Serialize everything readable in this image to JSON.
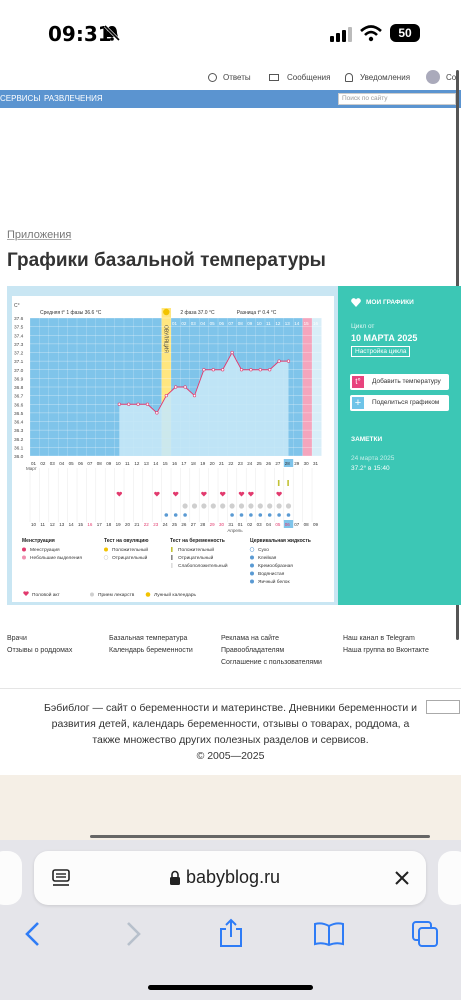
{
  "status": {
    "time": "09:31",
    "battery": "50"
  },
  "topbar": {
    "answers": "Ответы",
    "messages": "Сообщения",
    "notifications": "Уведомления",
    "profile_cut": "Со"
  },
  "nav": {
    "services": "СЕРВИСЫ",
    "entertainment": "РАЗВЛЕЧЕНИЯ",
    "search_placeholder": "Поиск по сайту"
  },
  "breadcrumb": "Приложения",
  "page_title": "Графики базальной температуры",
  "chart_data": {
    "type": "line",
    "title": "",
    "ylabel": "C°",
    "y_ticks": [
      "37.6",
      "37.5",
      "37.4",
      "37.3",
      "37.2",
      "37.1",
      "37.0",
      "36.9",
      "36.8",
      "36.7",
      "36.6",
      "36.5",
      "36.4",
      "36.3",
      "36.2",
      "36.1",
      "36.0"
    ],
    "ylim": [
      36.0,
      37.6
    ],
    "phase1_label": "Средняя t° 1 фазы 36.6 °C",
    "phase2_label": "2 фаза 37.0 °C",
    "diff_label": "Разница t° 0.4 °C",
    "ovulation_label": "ОВУЛЯЦИЯ",
    "top_days": [
      "01",
      "02",
      "03",
      "04",
      "05",
      "06",
      "07",
      "08",
      "09",
      "10",
      "11",
      "12",
      "13",
      "14",
      "15",
      "16"
    ],
    "x_cycle_days": [
      "01",
      "02",
      "03",
      "04",
      "05",
      "06",
      "07",
      "08",
      "09",
      "10",
      "11",
      "12",
      "13",
      "14",
      "15",
      "16",
      "17",
      "18",
      "19",
      "20",
      "21",
      "22",
      "23",
      "24",
      "25",
      "26",
      "27",
      "28",
      "29",
      "30",
      "31"
    ],
    "x_dates": [
      "10",
      "11",
      "12",
      "13",
      "14",
      "15",
      "16",
      "17",
      "18",
      "19",
      "20",
      "21",
      "22",
      "23",
      "24",
      "25",
      "26",
      "27",
      "28",
      "29",
      "30",
      "31",
      "01",
      "02",
      "03",
      "04",
      "05",
      "06",
      "07",
      "08",
      "09"
    ],
    "month_march": "Март",
    "month_april": "Апрель",
    "series": [
      {
        "x": [
          10,
          11,
          12,
          13,
          14,
          15,
          16,
          17,
          18,
          19,
          20,
          21,
          22,
          23,
          24,
          25,
          26,
          27,
          28
        ],
        "values": [
          36.6,
          36.6,
          36.6,
          36.6,
          36.5,
          36.7,
          36.8,
          36.8,
          36.7,
          37.0,
          37.0,
          37.0,
          37.2,
          37.0,
          37.0,
          37.0,
          37.0,
          37.1,
          37.1
        ]
      }
    ]
  },
  "legend": {
    "menstruation": {
      "title": "Менструация",
      "items": [
        "Менструация",
        "Небольшие выделения"
      ]
    },
    "ovulation_test": {
      "title": "Тест на овуляцию",
      "items": [
        "Положительный",
        "Отрицательный"
      ]
    },
    "pregnancy_test": {
      "title": "Тест на беременность",
      "items": [
        "Положительный",
        "Отрицательный",
        "Слабоположительный"
      ]
    },
    "cervical": {
      "title": "Цервикальная жидкость",
      "items": [
        "Сухо",
        "Клейкая",
        "Кремообразная",
        "Водянистая",
        "Яичный белок"
      ]
    },
    "bottom": [
      "Половой акт",
      "Прием лекарств",
      "Лунный календарь"
    ]
  },
  "sidebar": {
    "my_charts": "МОИ ГРАФИКИ",
    "cycle_from": "Цикл от",
    "cycle_date": "10 МАРТА 2025",
    "cycle_settings": "Настройка цикла",
    "add_temp": "Добавить температуру",
    "share": "Поделиться графиком",
    "notes_title": "ЗАМЕТКИ",
    "note_date": "24 марта 2025",
    "note_text": "37.2° в 15:40"
  },
  "footer": {
    "col1": [
      "Врачи",
      "Отзывы о роддомах"
    ],
    "col2": [
      "Базальная температура",
      "Календарь беременности"
    ],
    "col3": [
      "Реклама на сайте",
      "Правообладателям",
      "Соглашение с пользователями"
    ],
    "col4": [
      "Наш канал в Telegram",
      "Наша группа во Вконтакте"
    ]
  },
  "about": {
    "line1": "Бэбиблог — сайт о беременности и материнстве. Дневники беременности и",
    "line2": "развития детей, календарь беременности, отзывы о товарах, роддома, а",
    "line3": "также множество других полезных разделов и сервисов.",
    "line4": "© 2005—2025"
  },
  "browser": {
    "url": "babyblog.ru"
  }
}
